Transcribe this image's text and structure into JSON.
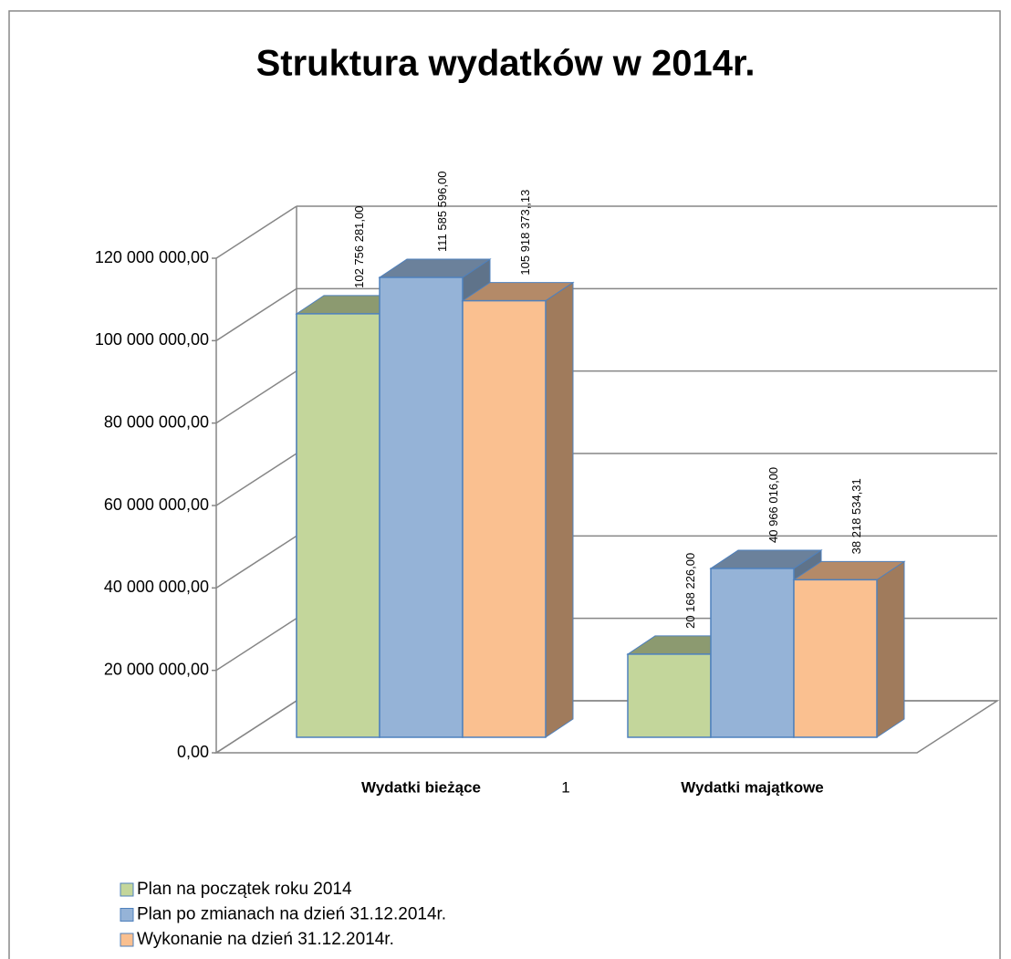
{
  "chart_data": {
    "type": "bar3d",
    "title": "Struktura wydatków w 2014r.",
    "categories": [
      "Wydatki bieżące",
      "Wydatki majątkowe"
    ],
    "annotation": "1",
    "series": [
      {
        "name": "Plan na początek roku 2014",
        "color": "#c3d69b",
        "values": [
          102756281.0,
          20168226.0
        ],
        "value_labels": [
          "102 756 281,00",
          "20 168 226,00"
        ]
      },
      {
        "name": "Plan po zmianach na dzień 31.12.2014r.",
        "color": "#95b3d7",
        "values": [
          111585596.0,
          40966016.0
        ],
        "value_labels": [
          "111 585 596,00",
          "40 966 016,00"
        ]
      },
      {
        "name": "Wykonanie na dzień 31.12.2014r.",
        "color": "#fac090",
        "values": [
          105918373.13,
          38218534.31
        ],
        "value_labels": [
          "105 918 373,,13",
          "38 218 534,31"
        ]
      }
    ],
    "ylim": [
      0,
      120000000
    ],
    "yticks": [
      {
        "value": 0,
        "label": "0,00"
      },
      {
        "value": 20000000,
        "label": "20 000 000,00"
      },
      {
        "value": 40000000,
        "label": "40 000 000,00"
      },
      {
        "value": 60000000,
        "label": "60 000 000,00"
      },
      {
        "value": 80000000,
        "label": "80 000 000,00"
      },
      {
        "value": 100000000,
        "label": "100 000 000,00"
      },
      {
        "value": 120000000,
        "label": "120 000 000,00"
      }
    ],
    "grid": true,
    "legend": "bottom-left"
  }
}
